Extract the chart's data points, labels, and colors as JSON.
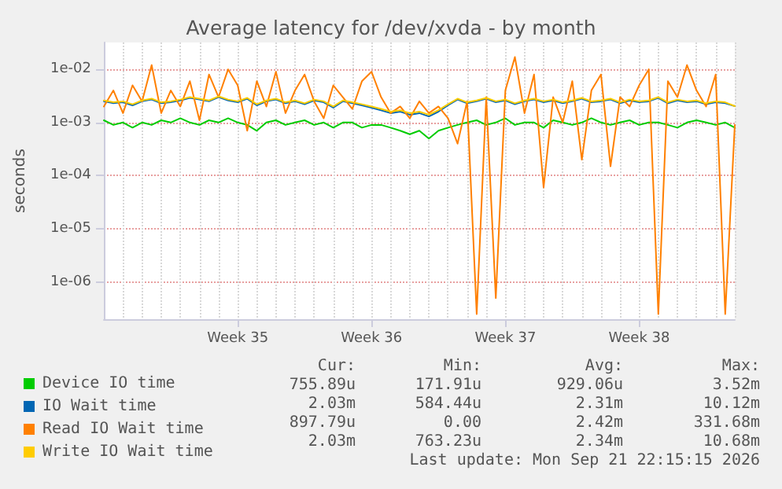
{
  "chart_data": {
    "type": "line",
    "title": "Average latency for /dev/xvda - by month",
    "ylabel": "seconds",
    "log": "y",
    "grid": true,
    "legend": "bottom",
    "marker": "none",
    "line_style": "solid",
    "ylim": [
      2e-07,
      0.032
    ],
    "yticks": [
      {
        "value": 1e-06,
        "label": "1e-06"
      },
      {
        "value": 1e-05,
        "label": "1e-05"
      },
      {
        "value": 0.0001,
        "label": "1e-04"
      },
      {
        "value": 0.001,
        "label": "1e-03"
      },
      {
        "value": 0.01,
        "label": "1e-02"
      }
    ],
    "categories": [
      null,
      null,
      null,
      null,
      null,
      null,
      null,
      null,
      null,
      null,
      null,
      null,
      null,
      null,
      "Week 35",
      null,
      null,
      null,
      null,
      null,
      null,
      null,
      null,
      null,
      null,
      null,
      null,
      null,
      "Week 36",
      null,
      null,
      null,
      null,
      null,
      null,
      null,
      null,
      null,
      null,
      null,
      null,
      null,
      "Week 37",
      null,
      null,
      null,
      null,
      null,
      null,
      null,
      null,
      null,
      null,
      null,
      null,
      null,
      "Week 38",
      null,
      null,
      null,
      null,
      null,
      null,
      null,
      null,
      null,
      null
    ],
    "series": [
      {
        "name": "Device IO time",
        "color": "#00cc00",
        "values": [
          0.0011,
          0.0009,
          0.001,
          0.0008,
          0.001,
          0.0009,
          0.0011,
          0.001,
          0.0012,
          0.001,
          0.0009,
          0.0011,
          0.001,
          0.0012,
          0.001,
          0.0009,
          0.0007,
          0.001,
          0.0011,
          0.0009,
          0.001,
          0.0011,
          0.0009,
          0.001,
          0.0008,
          0.001,
          0.001,
          0.0008,
          0.0009,
          0.0009,
          0.0008,
          0.0007,
          0.0006,
          0.0007,
          0.0005,
          0.0007,
          0.0008,
          0.0009,
          0.001,
          0.0011,
          0.0009,
          0.001,
          0.0012,
          0.0009,
          0.001,
          0.001,
          0.0008,
          0.0011,
          0.001,
          0.0009,
          0.001,
          0.0012,
          0.001,
          0.0009,
          0.001,
          0.0011,
          0.0009,
          0.001,
          0.001,
          0.0009,
          0.0008,
          0.001,
          0.0011,
          0.001,
          0.0009,
          0.001,
          0.0008
        ]
      },
      {
        "name": "IO Wait time",
        "color": "#0066b3",
        "values": [
          0.0025,
          0.0023,
          0.0024,
          0.0021,
          0.0025,
          0.0027,
          0.0023,
          0.0024,
          0.0026,
          0.0029,
          0.0027,
          0.0025,
          0.003,
          0.0026,
          0.0024,
          0.0028,
          0.0021,
          0.0025,
          0.0027,
          0.0023,
          0.0025,
          0.0022,
          0.0026,
          0.0024,
          0.0019,
          0.0025,
          0.0023,
          0.0021,
          0.0019,
          0.0017,
          0.0015,
          0.0016,
          0.0014,
          0.0015,
          0.0013,
          0.0016,
          0.0021,
          0.0027,
          0.0023,
          0.0025,
          0.0028,
          0.0024,
          0.0026,
          0.0022,
          0.0025,
          0.0027,
          0.0024,
          0.0026,
          0.0023,
          0.0025,
          0.0028,
          0.0024,
          0.0025,
          0.0027,
          0.0023,
          0.0026,
          0.0024,
          0.0025,
          0.0029,
          0.0023,
          0.0026,
          0.0024,
          0.0025,
          0.0022,
          0.0024,
          0.0023,
          0.00203
        ]
      },
      {
        "name": "Read IO Wait time",
        "color": "#ff8000",
        "values": [
          0.002,
          0.004,
          0.0015,
          0.005,
          0.0025,
          0.012,
          0.0015,
          0.004,
          0.002,
          0.006,
          0.0011,
          0.008,
          0.003,
          0.01,
          0.005,
          0.0007,
          0.006,
          0.002,
          0.009,
          0.0015,
          0.004,
          0.008,
          0.0025,
          0.0012,
          0.005,
          0.003,
          0.0018,
          0.006,
          0.009,
          0.003,
          0.0015,
          0.002,
          0.0012,
          0.0025,
          0.0015,
          0.002,
          0.0012,
          0.0004,
          0.0025,
          2.5e-07,
          0.003,
          5e-07,
          0.004,
          0.017,
          0.0015,
          0.008,
          6e-05,
          0.003,
          0.001,
          0.006,
          0.0002,
          0.004,
          0.008,
          0.00015,
          0.003,
          0.002,
          0.005,
          0.01,
          2.5e-07,
          0.006,
          0.003,
          0.012,
          0.004,
          0.002,
          0.008,
          2.5e-07,
          0.0009
        ]
      },
      {
        "name": "Write IO Wait time",
        "color": "#ffcc00",
        "values": [
          0.0026,
          0.0024,
          0.0025,
          0.0022,
          0.0026,
          0.0028,
          0.0024,
          0.0025,
          0.0027,
          0.003,
          0.0028,
          0.0026,
          0.0031,
          0.0027,
          0.0025,
          0.0029,
          0.0022,
          0.0026,
          0.0028,
          0.0024,
          0.0026,
          0.0023,
          0.0027,
          0.0025,
          0.002,
          0.0026,
          0.0024,
          0.0022,
          0.002,
          0.0018,
          0.0016,
          0.0017,
          0.0015,
          0.0016,
          0.0014,
          0.0017,
          0.0022,
          0.0028,
          0.0024,
          0.0026,
          0.0029,
          0.0025,
          0.0027,
          0.0023,
          0.0026,
          0.0028,
          0.0025,
          0.0027,
          0.0024,
          0.0026,
          0.0029,
          0.0025,
          0.0026,
          0.0028,
          0.0024,
          0.0027,
          0.0025,
          0.0026,
          0.003,
          0.0024,
          0.0027,
          0.0025,
          0.0026,
          0.0023,
          0.0025,
          0.0024,
          0.00203
        ]
      }
    ],
    "annotations": [
      "Cur:",
      "Min:",
      "Avg:",
      "Max:",
      "755.89u",
      "171.91u",
      "929.06u",
      "3.52m",
      "2.03m",
      "584.44u",
      "2.31m",
      "10.12m",
      "897.79u",
      "0.00",
      "2.42m",
      "331.68m",
      "2.03m",
      "763.23u",
      "2.34m",
      "10.68m",
      "Last update: Mon Sep 21 22:15:15 2026"
    ]
  }
}
